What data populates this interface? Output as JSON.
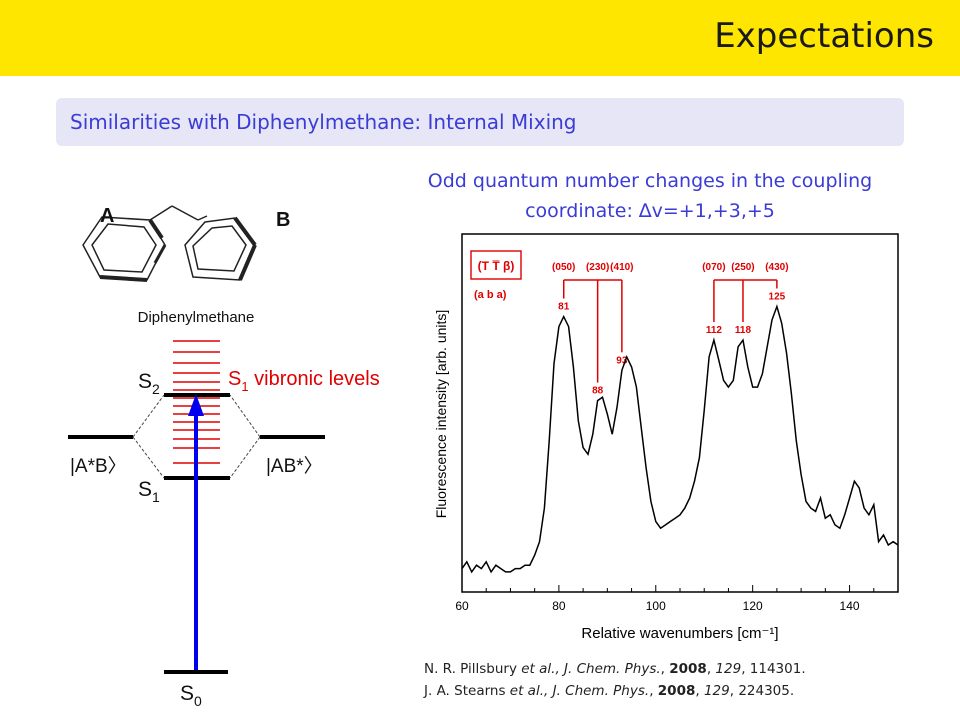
{
  "header": {
    "title": "Expectations"
  },
  "subtitle": "Similarities with Diphenylmethane: Internal Mixing",
  "note_line1": "Odd quantum number changes in the coupling",
  "note_line2": "coordinate: ∆v=+1,+3,+5",
  "diagram": {
    "ring_a_label": "A",
    "ring_b_label": "B",
    "molecule_label": "Diphenylmethane",
    "s2_label": "S",
    "s2_sub": "2",
    "s1_label": "S",
    "s1_sub": "1",
    "s0_label": "S",
    "s0_sub": "0",
    "vibronic_prefix": "S",
    "vibronic_sub": "1",
    "vibronic_text": " vibronic levels",
    "left_state": "|A*B〉",
    "right_state": "|AB*〉",
    "colors": {
      "levels": "#e00000",
      "arrow": "#0000ee",
      "lines": "#000000"
    }
  },
  "chart_data": {
    "type": "line",
    "xlabel": "Relative wavenumbers [cm⁻¹]",
    "ylabel": "Fluorescence intensity [arb. units]",
    "xlim": [
      60,
      150
    ],
    "ylim": [
      0,
      100
    ],
    "xticks": [
      60,
      80,
      100,
      120,
      140
    ],
    "grid": false,
    "series": [
      {
        "x": [
          60,
          61,
          62,
          63,
          64,
          65,
          66,
          67,
          68,
          69,
          70,
          71,
          72,
          73,
          74,
          75,
          76,
          77,
          78,
          79,
          80,
          81,
          82,
          83,
          84,
          85,
          86,
          87,
          88,
          89,
          90,
          91,
          92,
          93,
          94,
          95,
          96,
          97,
          98,
          99,
          100,
          101,
          102,
          103,
          104,
          105,
          106,
          107,
          108,
          109,
          110,
          111,
          112,
          113,
          114,
          115,
          116,
          117,
          118,
          119,
          120,
          121,
          122,
          123,
          124,
          125,
          126,
          127,
          128,
          129,
          130,
          131,
          132,
          133,
          134,
          135,
          136,
          137,
          138,
          139,
          140,
          141,
          142,
          143,
          144,
          145,
          146,
          147,
          148,
          149,
          150
        ],
        "y": [
          4,
          6,
          3,
          5,
          4,
          6,
          3,
          5,
          4,
          3,
          3,
          4,
          4,
          5,
          5,
          8,
          12,
          22,
          42,
          65,
          76,
          79,
          76,
          64,
          48,
          40,
          38,
          44,
          54,
          55,
          50,
          44,
          52,
          63,
          67,
          64,
          58,
          46,
          34,
          24,
          18,
          16,
          17,
          18,
          19,
          20,
          22,
          25,
          30,
          37,
          51,
          67,
          72,
          66,
          60,
          58,
          60,
          70,
          72,
          64,
          58,
          58,
          62,
          70,
          78,
          82,
          77,
          68,
          56,
          42,
          32,
          24,
          22,
          21,
          25,
          19,
          20,
          17,
          16,
          20,
          25,
          30,
          28,
          22,
          20,
          23,
          12,
          14,
          11,
          12,
          11
        ]
      }
    ],
    "annotations": [
      {
        "label": "81",
        "x": 81
      },
      {
        "label": "88",
        "x": 88
      },
      {
        "label": "93",
        "x": 93
      },
      {
        "label": "112",
        "x": 112
      },
      {
        "label": "118",
        "x": 118
      },
      {
        "label": "125",
        "x": 125
      }
    ],
    "groups": [
      {
        "labels": [
          "(050)",
          "(230)",
          "(410)"
        ],
        "x": [
          81,
          88,
          93
        ]
      },
      {
        "labels": [
          "(070)",
          "(250)",
          "(430)"
        ],
        "x": [
          112,
          118,
          125
        ]
      }
    ],
    "legend_box": "(T T̅ β)",
    "legend_sub": "(a b a)",
    "annotation_color": "#e00000"
  },
  "references": [
    {
      "authors": "N. R. Pillsbury ",
      "etal": "et al.",
      "journal": ", J. Chem. Phys.",
      "sep1": ", ",
      "year": "2008",
      "sep2": ", ",
      "volume": "129",
      "page": ", 114301."
    },
    {
      "authors": "J. A. Stearns ",
      "etal": "et al.",
      "journal": ", J. Chem. Phys.",
      "sep1": ", ",
      "year": "2008",
      "sep2": ", ",
      "volume": "129",
      "page": ", 224305."
    }
  ]
}
